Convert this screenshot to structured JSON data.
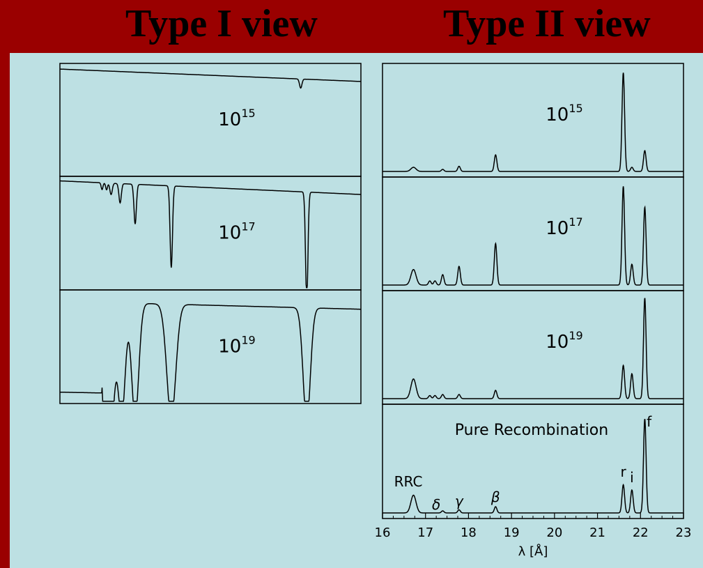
{
  "header": {
    "left_title": "Type I view",
    "right_title": "Type II view"
  },
  "colors": {
    "header_bg": "#9a0000",
    "content_bg": "#bde0e3",
    "ink": "#000000"
  },
  "chart_data": [
    {
      "type": "line",
      "title": "Type I view",
      "description_panels": [
        "10^15",
        "10^17",
        "10^19"
      ],
      "panels": [
        {
          "label_base": "10",
          "label_exp": "15",
          "continuum": [
            0.95,
            0.84
          ],
          "absorption": [
            {
              "x": 0.8,
              "depth": 0.08,
              "width": 0.004
            }
          ]
        },
        {
          "label_base": "10",
          "label_exp": "17",
          "continuum": [
            0.96,
            0.84
          ],
          "absorption": [
            {
              "x": 0.14,
              "depth": 0.06,
              "width": 0.003
            },
            {
              "x": 0.155,
              "depth": 0.06,
              "width": 0.003
            },
            {
              "x": 0.17,
              "depth": 0.1,
              "width": 0.004
            },
            {
              "x": 0.2,
              "depth": 0.17,
              "width": 0.004
            },
            {
              "x": 0.25,
              "depth": 0.35,
              "width": 0.004
            },
            {
              "x": 0.37,
              "depth": 0.72,
              "width": 0.004
            },
            {
              "x": 0.82,
              "depth": 0.95,
              "width": 0.004
            }
          ]
        },
        {
          "label_base": "10",
          "label_exp": "19",
          "continuum": [
            0.9,
            0.83
          ],
          "absorption": [
            {
              "x": 0.15,
              "depth": 1.0,
              "width": 0.012
            },
            {
              "x": 0.17,
              "depth": 1.0,
              "width": 0.012
            },
            {
              "x": 0.205,
              "depth": 1.0,
              "width": 0.012
            },
            {
              "x": 0.25,
              "depth": 1.0,
              "width": 0.012
            },
            {
              "x": 0.37,
              "depth": 1.0,
              "width": 0.015
            },
            {
              "x": 0.82,
              "depth": 1.0,
              "width": 0.012
            }
          ]
        }
      ]
    },
    {
      "type": "line",
      "title": "Type II view",
      "xlabel": "λ [Å]",
      "xlim": [
        16,
        23
      ],
      "xticks": [
        "16",
        "17",
        "18",
        "19",
        "20",
        "21",
        "22",
        "23"
      ],
      "panels": [
        {
          "label_base": "10",
          "label_exp": "15",
          "peaks": [
            {
              "x": 16.72,
              "height": 0.04,
              "width": 0.06
            },
            {
              "x": 17.4,
              "height": 0.02,
              "width": 0.03
            },
            {
              "x": 17.78,
              "height": 0.05,
              "width": 0.03
            },
            {
              "x": 18.63,
              "height": 0.16,
              "width": 0.03
            },
            {
              "x": 21.6,
              "height": 0.95,
              "width": 0.03
            },
            {
              "x": 21.8,
              "height": 0.04,
              "width": 0.03
            },
            {
              "x": 22.1,
              "height": 0.2,
              "width": 0.03
            }
          ]
        },
        {
          "label_base": "10",
          "label_exp": "17",
          "peaks": [
            {
              "x": 16.72,
              "height": 0.15,
              "width": 0.06
            },
            {
              "x": 17.1,
              "height": 0.04,
              "width": 0.03
            },
            {
              "x": 17.22,
              "height": 0.04,
              "width": 0.03
            },
            {
              "x": 17.4,
              "height": 0.1,
              "width": 0.03
            },
            {
              "x": 17.78,
              "height": 0.18,
              "width": 0.03
            },
            {
              "x": 18.63,
              "height": 0.4,
              "width": 0.03
            },
            {
              "x": 21.6,
              "height": 0.95,
              "width": 0.03
            },
            {
              "x": 21.8,
              "height": 0.2,
              "width": 0.03
            },
            {
              "x": 22.1,
              "height": 0.75,
              "width": 0.03
            }
          ]
        },
        {
          "label_base": "10",
          "label_exp": "19",
          "peaks": [
            {
              "x": 16.72,
              "height": 0.19,
              "width": 0.06
            },
            {
              "x": 17.1,
              "height": 0.03,
              "width": 0.03
            },
            {
              "x": 17.22,
              "height": 0.03,
              "width": 0.03
            },
            {
              "x": 17.4,
              "height": 0.04,
              "width": 0.03
            },
            {
              "x": 17.78,
              "height": 0.04,
              "width": 0.03
            },
            {
              "x": 18.63,
              "height": 0.08,
              "width": 0.03
            },
            {
              "x": 21.6,
              "height": 0.32,
              "width": 0.03
            },
            {
              "x": 21.8,
              "height": 0.24,
              "width": 0.03
            },
            {
              "x": 22.1,
              "height": 0.97,
              "width": 0.03
            }
          ]
        },
        {
          "label_base": "Pure Recombination",
          "label_exp": "",
          "peaks": [
            {
              "x": 16.72,
              "height": 0.17,
              "width": 0.06
            },
            {
              "x": 17.4,
              "height": 0.02,
              "width": 0.03
            },
            {
              "x": 17.78,
              "height": 0.03,
              "width": 0.03
            },
            {
              "x": 18.63,
              "height": 0.06,
              "width": 0.03
            },
            {
              "x": 21.6,
              "height": 0.27,
              "width": 0.03
            },
            {
              "x": 21.8,
              "height": 0.22,
              "width": 0.03
            },
            {
              "x": 22.1,
              "height": 0.9,
              "width": 0.03
            }
          ]
        }
      ],
      "annotations": [
        {
          "text": "RRC",
          "x": 16.6
        },
        {
          "text": "δ",
          "x": 17.25
        },
        {
          "text": "γ",
          "x": 17.78
        },
        {
          "text": "β",
          "x": 18.63
        },
        {
          "text": "r",
          "x": 21.6
        },
        {
          "text": "i",
          "x": 21.8
        },
        {
          "text": "f",
          "x": 22.2
        }
      ]
    }
  ]
}
